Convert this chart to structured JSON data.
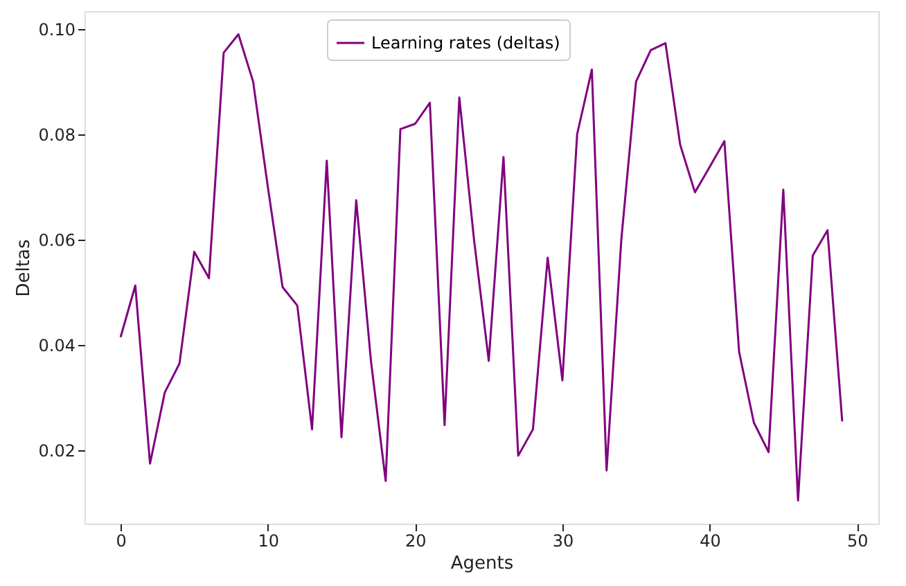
{
  "chart_data": {
    "type": "line",
    "xlabel": "Agents",
    "ylabel": "Deltas",
    "x": [
      0,
      1,
      2,
      3,
      4,
      5,
      6,
      7,
      8,
      9,
      10,
      11,
      12,
      13,
      14,
      15,
      16,
      17,
      18,
      19,
      20,
      21,
      22,
      23,
      24,
      25,
      26,
      27,
      28,
      29,
      30,
      31,
      32,
      33,
      34,
      35,
      36,
      37,
      38,
      39,
      40,
      41,
      42,
      43,
      44,
      45,
      46,
      47,
      48,
      49
    ],
    "series": [
      {
        "name": "Learning rates (deltas)",
        "color": "#800080",
        "values": [
          0.0415,
          0.0513,
          0.0175,
          0.031,
          0.0365,
          0.0577,
          0.0527,
          0.0955,
          0.099,
          0.09,
          0.07,
          0.051,
          0.0475,
          0.024,
          0.075,
          0.0225,
          0.0675,
          0.037,
          0.0142,
          0.081,
          0.082,
          0.086,
          0.0248,
          0.087,
          0.06,
          0.037,
          0.0757,
          0.019,
          0.024,
          0.0566,
          0.0333,
          0.08,
          0.0923,
          0.0162,
          0.06,
          0.09,
          0.096,
          0.0973,
          0.078,
          0.069,
          0.0738,
          0.0787,
          0.0387,
          0.0253,
          0.0197,
          0.0695,
          0.0105,
          0.057,
          0.0618,
          0.0255
        ]
      }
    ],
    "xlim": [
      -2.45,
      51.45
    ],
    "xticks": [
      0,
      10,
      20,
      30,
      40,
      50
    ],
    "ylim": [
      0.0061,
      0.1034
    ],
    "yticks": [
      {
        "value": 0.02,
        "label": "0.02"
      },
      {
        "value": 0.04,
        "label": "0.04"
      },
      {
        "value": 0.06,
        "label": "0.06"
      },
      {
        "value": 0.08,
        "label": "0.08"
      },
      {
        "value": 0.1,
        "label": "0.10"
      }
    ],
    "grid": false,
    "legend": "top",
    "marker": "none",
    "line_style": "solid"
  }
}
